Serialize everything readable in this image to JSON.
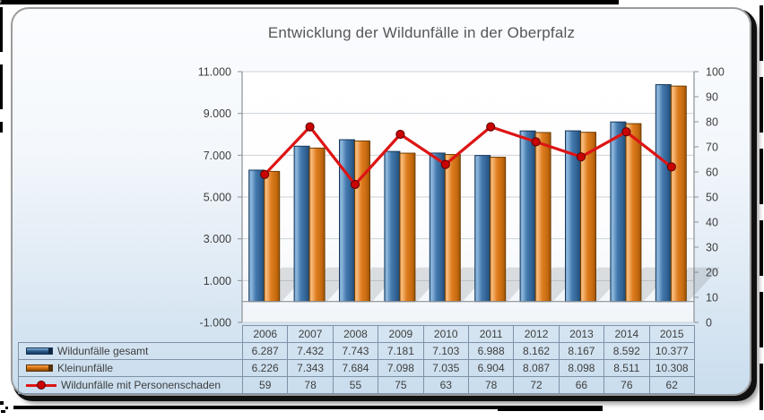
{
  "title": "Entwicklung der Wildunfälle in der Oberpfalz",
  "chart_data": {
    "type": "bar",
    "subtype": "grouped-bars-with-line-overlay",
    "title": "Entwicklung der Wildunfälle in der Oberpfalz",
    "categories": [
      "2006",
      "2007",
      "2008",
      "2009",
      "2010",
      "2011",
      "2012",
      "2013",
      "2014",
      "2015"
    ],
    "series": [
      {
        "name": "Wildunfälle gesamt",
        "type": "bar",
        "axis": "left",
        "color": "#4379AE",
        "values": [
          6287,
          7432,
          7743,
          7181,
          7103,
          6988,
          8162,
          8167,
          8592,
          10377
        ],
        "labels": [
          "6.287",
          "7.432",
          "7.743",
          "7.181",
          "7.103",
          "6.988",
          "8.162",
          "8.167",
          "8.592",
          "10.377"
        ]
      },
      {
        "name": "Kleinunfälle",
        "type": "bar",
        "axis": "left",
        "color": "#DF7D1F",
        "values": [
          6226,
          7343,
          7684,
          7098,
          7035,
          6904,
          8087,
          8098,
          8511,
          10308
        ],
        "labels": [
          "6.226",
          "7.343",
          "7.684",
          "7.098",
          "7.035",
          "6.904",
          "8.087",
          "8.098",
          "8.511",
          "10.308"
        ]
      },
      {
        "name": "Wildunfälle mit Personenschaden",
        "type": "line",
        "axis": "right",
        "color": "#DD1414",
        "values": [
          59,
          78,
          55,
          75,
          63,
          78,
          72,
          66,
          76,
          62
        ],
        "labels": [
          "59",
          "78",
          "55",
          "75",
          "63",
          "78",
          "72",
          "66",
          "76",
          "62"
        ]
      }
    ],
    "left_axis": {
      "min": -1000,
      "max": 11000,
      "tick_step": 2000,
      "tick_labels": [
        "11.000",
        "9.000",
        "7.000",
        "5.000",
        "3.000",
        "1.000",
        "-1.000"
      ]
    },
    "right_axis": {
      "min": 0,
      "max": 100,
      "tick_step": 10,
      "tick_labels": [
        "100",
        "90",
        "80",
        "70",
        "60",
        "50",
        "40",
        "30",
        "20",
        "10",
        "0"
      ]
    },
    "grid": true,
    "legend_position": "bottom-left-table",
    "colors": {
      "grid_line": "#CDD2D8",
      "axis_line": "#8C9196",
      "axis_text": "#3E3E3E",
      "table_border": "#7E92A8",
      "panel_bg_top": "#FBFCFE",
      "panel_bg_bottom": "#C9DDEE",
      "bar_blue_edge": "#16375B",
      "bar_orange_edge": "#6E3D00",
      "line_red": "#DD1414",
      "marker_red": "#C90202"
    }
  }
}
